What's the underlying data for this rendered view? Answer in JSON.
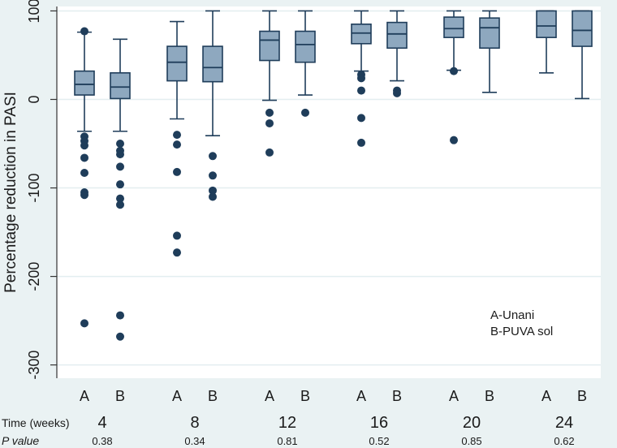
{
  "chart_data": {
    "type": "boxplot",
    "ylabel": "Percentage reduction in PASI",
    "ylim": [
      -315,
      105
    ],
    "yticks": [
      100,
      0,
      -100,
      -200,
      -300
    ],
    "grid": "horizontal",
    "colors": {
      "box": "#8ea8bf",
      "stroke": "#1f3d5a",
      "background": "#eaf2f3",
      "plot": "#ffffff",
      "grid": "#e3eef0"
    },
    "legend": [
      "A-Unani",
      "B-PUVA sol"
    ],
    "legend_position": "bottom-right inside",
    "row_labels": {
      "time": "Time (weeks)",
      "pvalue": "P value"
    },
    "groups": [
      {
        "time": "4",
        "p_value": "0.38",
        "boxes": [
          {
            "label": "A",
            "whisker_low": -36,
            "q1": 5,
            "median": 17,
            "q3": 32,
            "whisker_high": 76,
            "outliers": [
              77,
              -42,
              -47,
              -52,
              -66,
              -83,
              -105,
              -108,
              -253
            ]
          },
          {
            "label": "B",
            "whisker_low": -36,
            "q1": 1,
            "median": 14,
            "q3": 30,
            "whisker_high": 68,
            "outliers": [
              -50,
              -58,
              -62,
              -76,
              -96,
              -112,
              -119,
              -244,
              -268
            ]
          }
        ]
      },
      {
        "time": "8",
        "p_value": "0.34",
        "boxes": [
          {
            "label": "A",
            "whisker_low": -22,
            "q1": 21,
            "median": 42,
            "q3": 60,
            "whisker_high": 88,
            "outliers": [
              -40,
              -51,
              -82,
              -154,
              -173
            ]
          },
          {
            "label": "B",
            "whisker_low": -41,
            "q1": 20,
            "median": 36,
            "q3": 60,
            "whisker_high": 100,
            "outliers": [
              -64,
              -86,
              -103,
              -110
            ]
          }
        ]
      },
      {
        "time": "12",
        "p_value": "0.81",
        "boxes": [
          {
            "label": "A",
            "whisker_low": -1,
            "q1": 44,
            "median": 67,
            "q3": 77,
            "whisker_high": 100,
            "outliers": [
              -15,
              -27,
              -60
            ]
          },
          {
            "label": "B",
            "whisker_low": 5,
            "q1": 42,
            "median": 62,
            "q3": 77,
            "whisker_high": 100,
            "outliers": [
              -15
            ]
          }
        ]
      },
      {
        "time": "16",
        "p_value": "0.52",
        "boxes": [
          {
            "label": "A",
            "whisker_low": 32,
            "q1": 63,
            "median": 75,
            "q3": 85,
            "whisker_high": 100,
            "outliers": [
              28,
              24,
              10,
              -21,
              -49
            ]
          },
          {
            "label": "B",
            "whisker_low": 21,
            "q1": 58,
            "median": 74,
            "q3": 87,
            "whisker_high": 100,
            "outliers": [
              10,
              7
            ]
          }
        ]
      },
      {
        "time": "20",
        "p_value": "0.85",
        "boxes": [
          {
            "label": "A",
            "whisker_low": 33,
            "q1": 70,
            "median": 80,
            "q3": 93,
            "whisker_high": 100,
            "outliers": [
              32,
              -46
            ]
          },
          {
            "label": "B",
            "whisker_low": 8,
            "q1": 58,
            "median": 81,
            "q3": 92,
            "whisker_high": 100,
            "outliers": []
          }
        ]
      },
      {
        "time": "24",
        "p_value": "0.62",
        "boxes": [
          {
            "label": "A",
            "whisker_low": 30,
            "q1": 70,
            "median": 83,
            "q3": 100,
            "whisker_high": 100,
            "outliers": []
          },
          {
            "label": "B",
            "whisker_low": 1,
            "q1": 60,
            "median": 78,
            "q3": 100,
            "whisker_high": 100,
            "outliers": []
          }
        ]
      }
    ]
  }
}
